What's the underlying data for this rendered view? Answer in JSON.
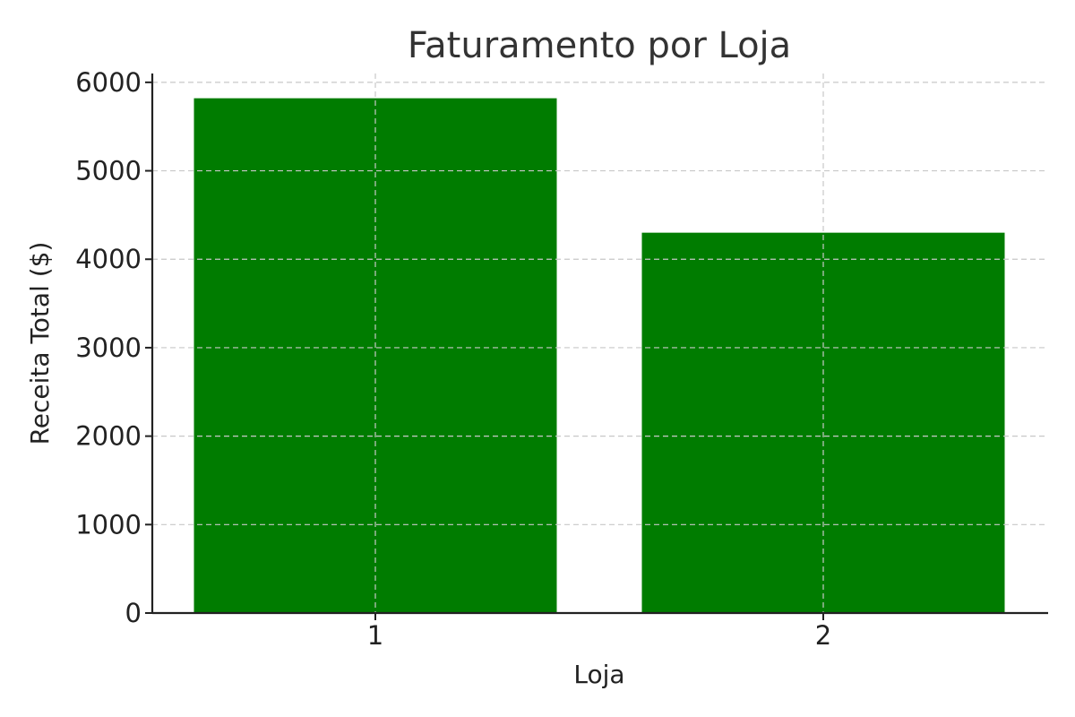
{
  "chart_data": {
    "type": "bar",
    "title": "Faturamento por Loja",
    "xlabel": "Loja",
    "ylabel": "Receita Total ($)",
    "categories": [
      "1",
      "2"
    ],
    "values": [
      5820,
      4300
    ],
    "ylim": [
      0,
      6100
    ],
    "yticks": [
      0,
      1000,
      2000,
      3000,
      4000,
      5000,
      6000
    ],
    "grid": true,
    "bar_color": "#007c00"
  }
}
